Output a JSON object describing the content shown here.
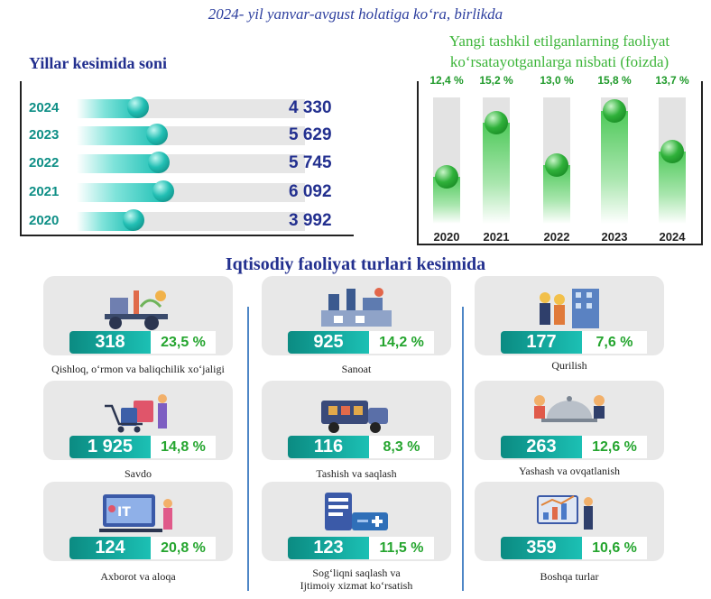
{
  "header": {
    "top_title": "2024- yil yanvar-avgust holatiga ko‘ra, birlikda",
    "left_title": "Yillar kesimida soni",
    "right_title_line1": "Yangi tashkil etilganlarning faoliyat",
    "right_title_line2": "ko‘rsatayotganlarga nisbati (foizda)",
    "section_title": "Iqtisodiy faoliyat turlari kesimida"
  },
  "colors": {
    "navy": "#23308f",
    "teal": "#1cc0b4",
    "green": "#2fb13a",
    "separator": "#4e86c6"
  },
  "chart_data": [
    {
      "type": "bar",
      "orientation": "horizontal",
      "title": "Yillar kesimida soni",
      "categories": [
        "2024",
        "2023",
        "2022",
        "2021",
        "2020"
      ],
      "values": [
        4330,
        5629,
        5745,
        6092,
        3992
      ],
      "value_labels": [
        "4 330",
        "5 629",
        "5 745",
        "6 092",
        "3 992"
      ],
      "xlim": [
        0,
        16000
      ]
    },
    {
      "type": "bar",
      "orientation": "vertical",
      "title": "Yangi tashkil etilganlarning faoliyat ko‘rsatayotganlarga nisbati (foizda)",
      "categories": [
        "2020",
        "2021",
        "2022",
        "2023",
        "2024"
      ],
      "values": [
        12.4,
        15.2,
        13.0,
        15.8,
        13.7
      ],
      "value_labels": [
        "12,4 %",
        "15,2 %",
        "13,0 %",
        "15,8 %",
        "13,7 %"
      ],
      "ylim": [
        10.0,
        16.5
      ]
    }
  ],
  "sectors": [
    {
      "name": "Qishloq, o‘rmon va baliqchilik xo‘jaligi",
      "count": "318",
      "pct": "23,5 %",
      "icon": "agriculture-icon"
    },
    {
      "name": "Sanoat",
      "count": "925",
      "pct": "14,2 %",
      "icon": "industry-icon"
    },
    {
      "name": "Qurilish",
      "count": "177",
      "pct": "7,6 %",
      "icon": "construction-icon"
    },
    {
      "name": "Savdo",
      "count": "1 925",
      "pct": "14,8 %",
      "icon": "shopping-icon"
    },
    {
      "name": "Tashish va saqlash",
      "count": "116",
      "pct": "8,3 %",
      "icon": "transport-icon"
    },
    {
      "name": "Yashash va ovqatlanish",
      "count": "263",
      "pct": "12,6 %",
      "icon": "hospitality-icon"
    },
    {
      "name": "Axborot va aloqa",
      "count": "124",
      "pct": "20,8 %",
      "icon": "it-icon"
    },
    {
      "name_line1": "Sog‘liqni saqlash va",
      "name_line2": "Ijtimoiy xizmat ko‘rsatish",
      "count": "123",
      "pct": "11,5 %",
      "icon": "healthcare-icon"
    },
    {
      "name": "Boshqa turlar",
      "count": "359",
      "pct": "10,6 %",
      "icon": "other-icon"
    }
  ]
}
